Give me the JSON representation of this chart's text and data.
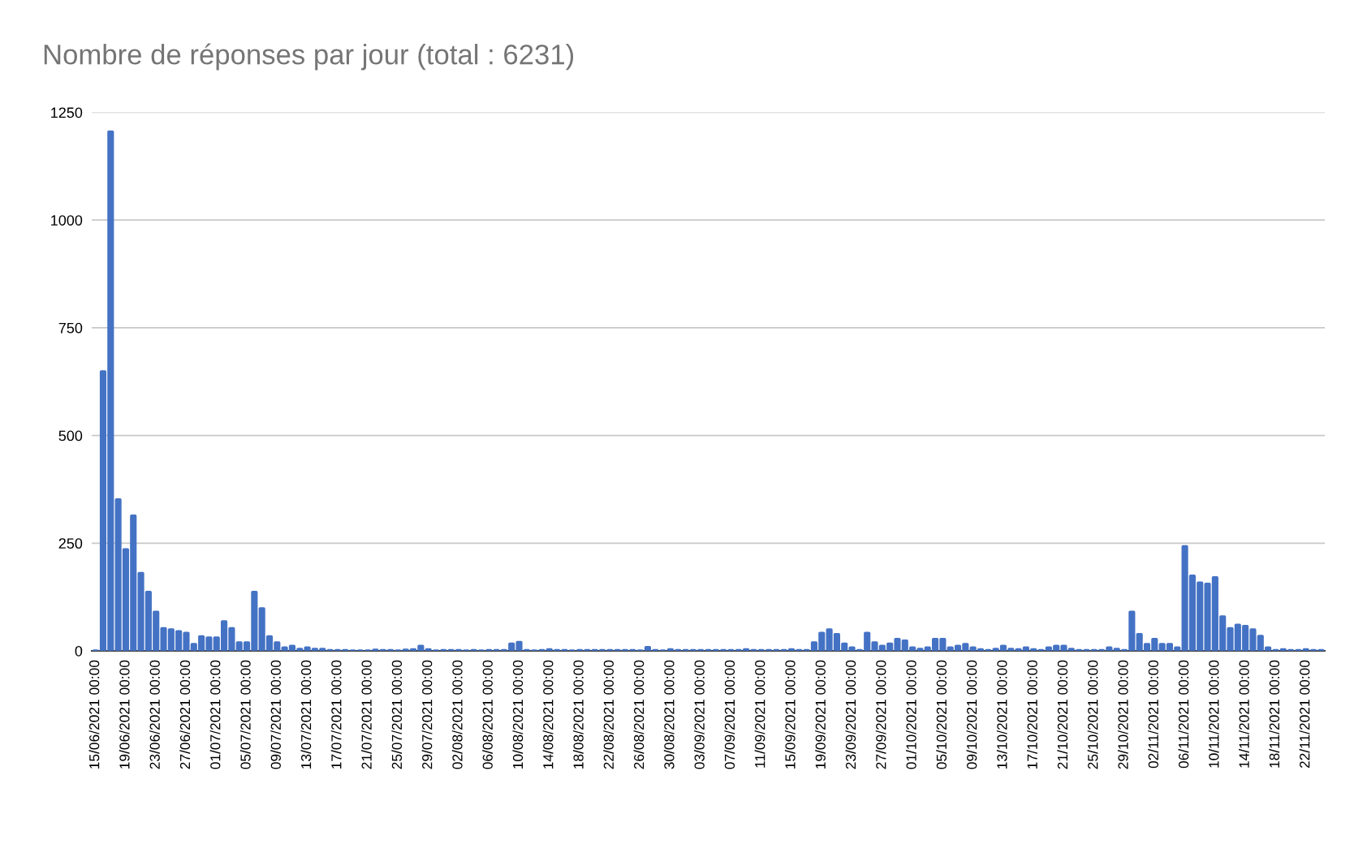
{
  "chart_data": {
    "type": "bar",
    "title": "Nombre de réponses par jour (total : 6231)",
    "categories": [
      "15/06/2021 00:00",
      null,
      null,
      null,
      "19/06/2021 00:00",
      null,
      null,
      null,
      "23/06/2021 00:00",
      null,
      null,
      null,
      "27/06/2021 00:00",
      null,
      null,
      null,
      "01/07/2021 00:00",
      null,
      null,
      null,
      "05/07/2021 00:00",
      null,
      null,
      null,
      "09/07/2021 00:00",
      null,
      null,
      null,
      "13/07/2021 00:00",
      null,
      null,
      null,
      "17/07/2021 00:00",
      null,
      null,
      null,
      "21/07/2021 00:00",
      null,
      null,
      null,
      "25/07/2021 00:00",
      null,
      null,
      null,
      "29/07/2021 00:00",
      null,
      null,
      null,
      "02/08/2021 00:00",
      null,
      null,
      null,
      "06/08/2021 00:00",
      null,
      null,
      null,
      "10/08/2021 00:00",
      null,
      null,
      null,
      "14/08/2021 00:00",
      null,
      null,
      null,
      "18/08/2021 00:00",
      null,
      null,
      null,
      "22/08/2021 00:00",
      null,
      null,
      null,
      "26/08/2021 00:00",
      null,
      null,
      null,
      "30/08/2021 00:00",
      null,
      null,
      null,
      "03/09/2021 00:00",
      null,
      null,
      null,
      "07/09/2021 00:00",
      null,
      null,
      null,
      "11/09/2021 00:00",
      null,
      null,
      null,
      "15/09/2021 00:00",
      null,
      null,
      null,
      "19/09/2021 00:00",
      null,
      null,
      null,
      "23/09/2021 00:00",
      null,
      null,
      null,
      "27/09/2021 00:00",
      null,
      null,
      null,
      "01/10/2021 00:00",
      null,
      null,
      null,
      "05/10/2021 00:00",
      null,
      null,
      null,
      "09/10/2021 00:00",
      null,
      null,
      null,
      "13/10/2021 00:00",
      null,
      null,
      null,
      "17/10/2021 00:00",
      null,
      null,
      null,
      "21/10/2021 00:00",
      null,
      null,
      null,
      "25/10/2021 00:00",
      null,
      null,
      null,
      "29/10/2021 00:00",
      null,
      null,
      null,
      "02/11/2021 00:00",
      null,
      null,
      null,
      "06/11/2021 00:00",
      null,
      null,
      null,
      "10/11/2021 00:00",
      null,
      null,
      null,
      "14/11/2021 00:00",
      null,
      null,
      null,
      "18/11/2021 00:00",
      null,
      null,
      null,
      "22/11/2021 00:00",
      null,
      null
    ],
    "values": [
      0,
      648,
      1205,
      351,
      235,
      313,
      180,
      136,
      90,
      52,
      49,
      45,
      41,
      15,
      33,
      30,
      30,
      68,
      52,
      19,
      19,
      136,
      98,
      33,
      19,
      7,
      11,
      4,
      7,
      4,
      4,
      1,
      1,
      1,
      0,
      0,
      0,
      2,
      1,
      1,
      0,
      2,
      3,
      11,
      3,
      0,
      1,
      1,
      1,
      0,
      1,
      0,
      1,
      1,
      1,
      16,
      20,
      1,
      0,
      1,
      3,
      1,
      1,
      0,
      1,
      1,
      1,
      1,
      1,
      1,
      1,
      1,
      0,
      8,
      1,
      0,
      3,
      1,
      1,
      1,
      1,
      1,
      1,
      1,
      1,
      1,
      3,
      1,
      1,
      1,
      1,
      1,
      3,
      1,
      1,
      19,
      41,
      49,
      38,
      16,
      7,
      1,
      41,
      19,
      11,
      16,
      27,
      23,
      7,
      4,
      7,
      27,
      27,
      7,
      11,
      15,
      7,
      3,
      1,
      4,
      11,
      4,
      3,
      7,
      3,
      1,
      7,
      11,
      11,
      4,
      1,
      1,
      1,
      1,
      7,
      4,
      1,
      90,
      38,
      15,
      27,
      15,
      15,
      7,
      242,
      174,
      158,
      155,
      170,
      79,
      52,
      60,
      57,
      49,
      34,
      7,
      1,
      3,
      1,
      1,
      3,
      1,
      1
    ],
    "color": "#4472c4",
    "ylim": [
      0,
      1250
    ],
    "yticks": [
      0,
      250,
      500,
      750,
      1000,
      1250
    ],
    "grid": "y",
    "legend": false
  }
}
